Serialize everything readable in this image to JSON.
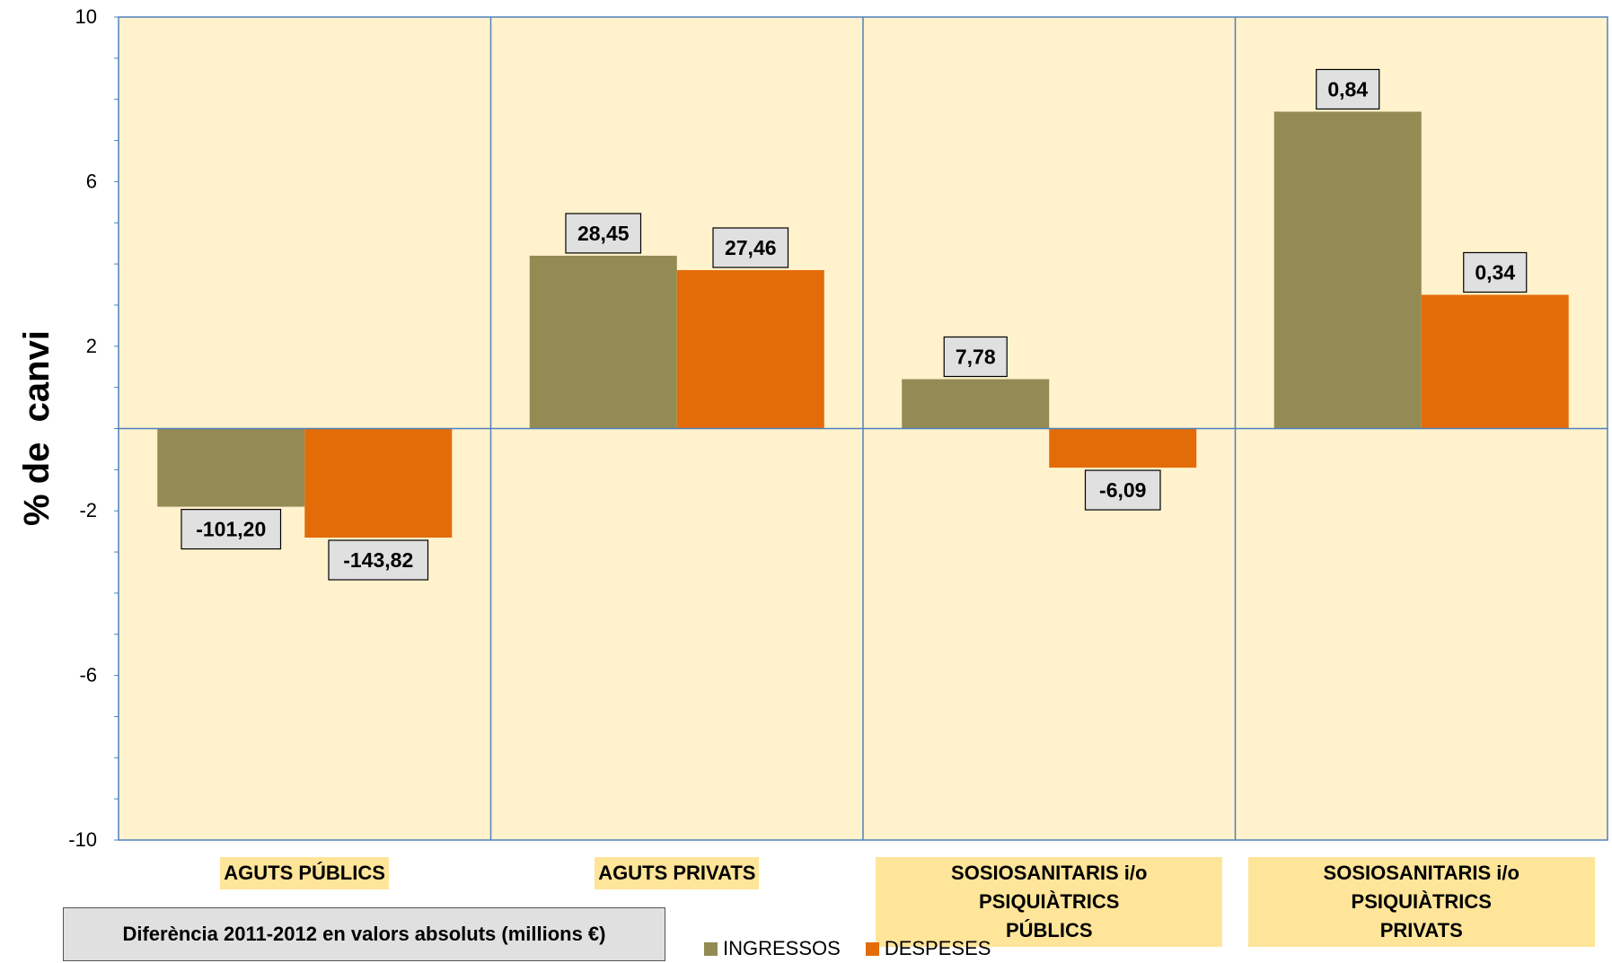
{
  "chart_data": {
    "type": "bar",
    "ylabel": "% de  canvi",
    "ylim": [
      -10,
      10
    ],
    "yticks": [
      "10",
      "6",
      "2",
      "-2",
      "-6",
      "-10"
    ],
    "grid": false,
    "legend_position": "bottom",
    "categories": [
      "AGUTS PÚBLICS",
      "AGUTS PRIVATS",
      "SOSIOSANITARIS i/o PSIQUIÀTRICS PÚBLICS",
      "SOSIOSANITARIS i/o PSIQUIÀTRICS PRIVATS"
    ],
    "series": [
      {
        "name": "INGRESSOS",
        "color": "#948a54",
        "values": [
          -1.9,
          4.2,
          1.2,
          7.7
        ],
        "data_labels": [
          "-101,20",
          "28,45",
          "7,78",
          "0,84"
        ]
      },
      {
        "name": "DESPESES",
        "color": "#e36c09",
        "values": [
          -2.65,
          3.85,
          -0.95,
          3.25
        ],
        "data_labels": [
          "-143,82",
          "27,46",
          "-6,09",
          "0,34"
        ]
      }
    ],
    "note": "Diferència  2011-2012 en valors absoluts (millions €)",
    "plot_background": "#fff2cc",
    "axis_color": "#4f81bd"
  }
}
